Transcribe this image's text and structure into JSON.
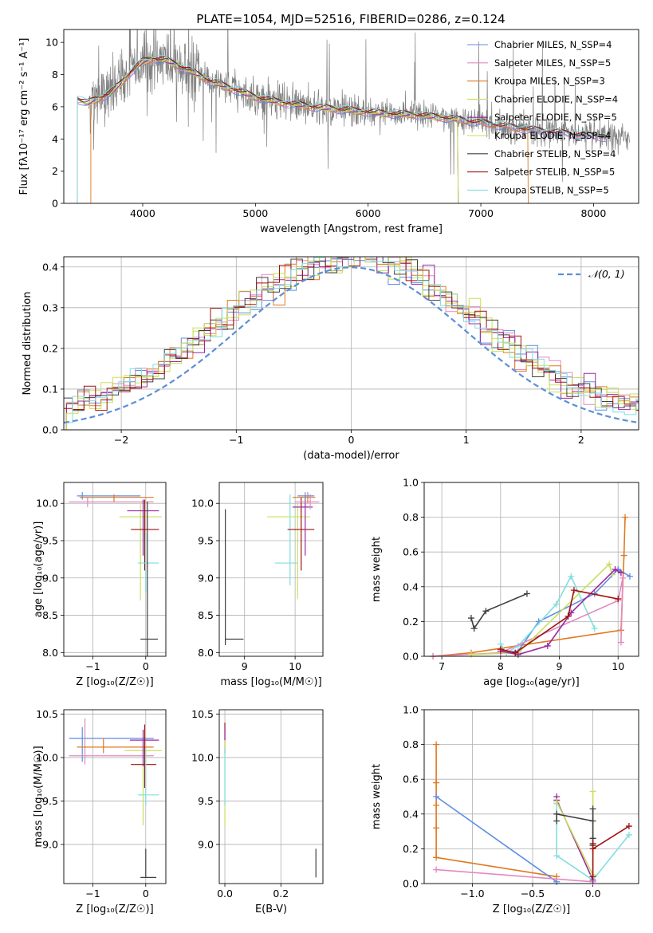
{
  "figure": {
    "title": "PLATE=1054, MJD=52516, FIBERID=0286, z=0.124"
  },
  "series": [
    {
      "key": "ch_miles",
      "label": "Chabrier MILES, N_SSP=4",
      "color": "#5f8ee0"
    },
    {
      "key": "sa_miles",
      "label": "Salpeter MILES, N_SSP=5",
      "color": "#e28ac0"
    },
    {
      "key": "kr_miles",
      "label": "Kroupa MILES, N_SSP=3",
      "color": "#e07820"
    },
    {
      "key": "ch_elodie",
      "label": "Chabrier ELODIE, N_SSP=4",
      "color": "#c8e060"
    },
    {
      "key": "sa_elodie",
      "label": "Salpeter ELODIE, N_SSP=5",
      "color": "#9a2aa0"
    },
    {
      "key": "kr_elodie",
      "label": "Kroupa ELODIE, N_SSP=4",
      "color": "#c8e050"
    },
    {
      "key": "ch_stelib",
      "label": "Chabrier STELIB, N_SSP=4",
      "color": "#404040"
    },
    {
      "key": "sa_stelib",
      "label": "Salpeter STELIB, N_SSP=5",
      "color": "#a01010"
    },
    {
      "key": "kr_stelib",
      "label": "Kroupa STELIB, N_SSP=5",
      "color": "#80dde0"
    }
  ],
  "chart_data": [
    {
      "id": "spectrum",
      "type": "line",
      "xlabel": "wavelength [Angstrom, rest frame]",
      "ylabel": "Flux [fλ10⁻¹⁷ erg cm⁻² s⁻¹ A⁻¹]",
      "xlim": [
        3300,
        8400
      ],
      "ylim": [
        0,
        10.8
      ],
      "xticks": [
        4000,
        5000,
        6000,
        7000,
        8000
      ],
      "yticks": [
        0,
        2,
        4,
        6,
        8,
        10
      ],
      "data_color": "#808080",
      "data_range": [
        3520,
        8320
      ],
      "continuum": {
        "x": [
          3420,
          3500,
          3600,
          3700,
          3800,
          3900,
          4000,
          4100,
          4200,
          4400,
          4600,
          4800,
          5000,
          5200,
          5500,
          5800,
          6100,
          6400,
          6700,
          7000,
          7400,
          7800,
          8100
        ],
        "y": [
          6.5,
          6.2,
          6.5,
          6.8,
          7.4,
          8.2,
          8.8,
          9.0,
          8.9,
          8.3,
          7.6,
          7.1,
          6.6,
          6.3,
          6.0,
          5.8,
          5.6,
          5.5,
          5.3,
          5.0,
          4.6,
          4.3,
          4.1
        ]
      },
      "model_starts": {
        "kr_miles": 3540,
        "sa_miles": 3420,
        "ch_miles": 3420
      },
      "model_ends": {
        "kr_miles": 7420,
        "ch_elodie": 6800,
        "kr_elodie": 6800,
        "sa_elodie": 6800
      }
    },
    {
      "id": "residuals",
      "type": "line",
      "xlabel": "(data-model)/error",
      "ylabel": "Normed distribution",
      "xlim": [
        -2.5,
        2.5
      ],
      "ylim": [
        0,
        0.425
      ],
      "xticks": [
        -2,
        -1,
        0,
        1,
        2
      ],
      "yticks": [
        0.0,
        0.1,
        0.2,
        0.3,
        0.4
      ],
      "gaussian_label": "𝒩(0, 1)",
      "gaussian_color": "#5b8fd6"
    },
    {
      "id": "age_vs_Z",
      "type": "scatter",
      "xlabel": "Z [log₁₀(Z/Z☉)]",
      "ylabel": "age  [log₁₀(age/yr)]",
      "xlim": [
        -1.55,
        0.38
      ],
      "ylim": [
        7.95,
        10.28
      ],
      "xticks": [
        -1,
        0
      ],
      "yticks": [
        8.0,
        8.5,
        9.0,
        9.5,
        10.0
      ],
      "points": [
        {
          "s": "ch_miles",
          "x": -1.2,
          "y": 10.1,
          "xe": [
            -1.3,
            -0.1
          ],
          "ye": [
            10.05,
            10.15
          ]
        },
        {
          "s": "sa_miles",
          "x": -1.1,
          "y": 10.02,
          "xe": [
            -1.45,
            0.15
          ],
          "ye": [
            9.95,
            10.08
          ]
        },
        {
          "s": "kr_miles",
          "x": -0.6,
          "y": 10.08,
          "xe": [
            -1.25,
            0.15
          ],
          "ye": [
            10.02,
            10.12
          ]
        },
        {
          "s": "ch_elodie",
          "x": -0.1,
          "y": 9.82,
          "xe": [
            -0.5,
            0.3
          ],
          "ye": [
            8.7,
            10.0
          ]
        },
        {
          "s": "sa_elodie",
          "x": -0.05,
          "y": 9.9,
          "xe": [
            -0.35,
            0.25
          ],
          "ye": [
            9.3,
            10.05
          ]
        },
        {
          "s": "sa_stelib",
          "x": -0.02,
          "y": 9.65,
          "xe": [
            -0.28,
            0.25
          ],
          "ye": [
            9.1,
            10.05
          ]
        },
        {
          "s": "kr_stelib",
          "x": 0.0,
          "y": 9.2,
          "xe": [
            -0.15,
            0.25
          ],
          "ye": [
            8.8,
            9.6
          ]
        },
        {
          "s": "ch_stelib",
          "x": 0.03,
          "y": 8.18,
          "xe": [
            -0.1,
            0.23
          ],
          "ye": [
            7.95,
            10.02
          ]
        }
      ]
    },
    {
      "id": "age_vs_mass",
      "type": "scatter",
      "xlabel": "mass [log₁₀(M/M☉)]",
      "ylabel": "",
      "xlim": [
        8.5,
        10.55
      ],
      "ylim": [
        7.95,
        10.28
      ],
      "xticks": [
        9,
        10
      ],
      "yticks": [
        8.0,
        8.5,
        9.0,
        9.5,
        10.0
      ],
      "points": [
        {
          "s": "ch_stelib",
          "x": 8.62,
          "y": 8.18,
          "xe": [
            8.62,
            8.98
          ],
          "ye": [
            8.1,
            9.92
          ]
        },
        {
          "s": "kr_stelib",
          "x": 9.9,
          "y": 9.2,
          "xe": [
            9.6,
            10.05
          ],
          "ye": [
            8.9,
            10.12
          ]
        },
        {
          "s": "ch_elodie",
          "x": 10.05,
          "y": 9.82,
          "xe": [
            9.45,
            10.3
          ],
          "ye": [
            8.72,
            10.0
          ]
        },
        {
          "s": "sa_stelib",
          "x": 10.12,
          "y": 9.65,
          "xe": [
            9.85,
            10.38
          ],
          "ye": [
            9.1,
            10.08
          ]
        },
        {
          "s": "sa_elodie",
          "x": 10.2,
          "y": 9.95,
          "xe": [
            9.95,
            10.35
          ],
          "ye": [
            9.3,
            10.1
          ]
        },
        {
          "s": "kr_miles",
          "x": 10.25,
          "y": 10.08,
          "xe": [
            9.95,
            10.4
          ],
          "ye": [
            10.0,
            10.15
          ]
        },
        {
          "s": "sa_miles",
          "x": 10.3,
          "y": 10.02,
          "xe": [
            10.0,
            10.48
          ],
          "ye": [
            9.92,
            10.12
          ]
        },
        {
          "s": "ch_miles",
          "x": 10.2,
          "y": 10.1,
          "xe": [
            10.05,
            10.38
          ],
          "ye": [
            10.05,
            10.15
          ]
        }
      ]
    },
    {
      "id": "weight_vs_age",
      "type": "line",
      "xlabel": "age  [log₁₀(age/yr)]",
      "ylabel": "mass weight",
      "xlim": [
        6.7,
        10.35
      ],
      "ylim": [
        0,
        1.0
      ],
      "xticks": [
        7,
        8,
        9,
        10
      ],
      "yticks": [
        0.0,
        0.2,
        0.4,
        0.6,
        0.8,
        1.0
      ],
      "lines": [
        {
          "s": "ch_stelib",
          "x": [
            7.5,
            7.55,
            7.75,
            8.45
          ],
          "y": [
            0.22,
            0.16,
            0.26,
            0.36
          ]
        },
        {
          "s": "kr_miles",
          "x": 6.85,
          "xs": [
            6.85,
            7.5,
            10.05,
            10.1,
            10.12
          ],
          "ys": [
            0.0,
            0.02,
            0.15,
            0.58,
            0.8
          ]
        },
        {
          "s": "ch_miles",
          "x": [
            8.0,
            8.3,
            8.65,
            9.6,
            10.0,
            10.2
          ],
          "y": [
            0.02,
            0.03,
            0.2,
            0.36,
            0.5,
            0.46
          ]
        },
        {
          "s": "kr_stelib",
          "x": [
            8.0,
            8.1,
            8.3,
            8.95,
            9.2,
            9.6
          ],
          "y": [
            0.07,
            0.02,
            0.06,
            0.3,
            0.46,
            0.16
          ]
        },
        {
          "s": "sa_miles",
          "x": [
            6.85,
            8.0,
            10.0,
            10.08,
            10.05
          ],
          "y": [
            0.0,
            0.02,
            0.32,
            0.45,
            0.08
          ]
        },
        {
          "s": "ch_elodie",
          "x": [
            7.5,
            8.3,
            9.85,
            9.9
          ],
          "y": [
            0.01,
            0.02,
            0.53,
            0.47
          ]
        },
        {
          "s": "sa_elodie",
          "x": [
            8.0,
            8.3,
            8.8,
            9.2,
            9.95,
            10.05
          ],
          "y": [
            0.03,
            0.01,
            0.06,
            0.25,
            0.5,
            0.48
          ]
        },
        {
          "s": "sa_stelib",
          "x": [
            8.0,
            8.25,
            9.15,
            9.25,
            10.0
          ],
          "y": [
            0.04,
            0.02,
            0.23,
            0.38,
            0.33
          ]
        }
      ]
    },
    {
      "id": "mass_vs_Z",
      "type": "scatter",
      "xlabel": "Z [log₁₀(Z/Z☉)]",
      "ylabel": "mass [log₁₀(M/M☉)]",
      "xlim": [
        -1.55,
        0.38
      ],
      "ylim": [
        8.55,
        10.55
      ],
      "xticks": [
        -1,
        0
      ],
      "yticks": [
        9.0,
        9.5,
        10.0,
        10.5
      ],
      "points": [
        {
          "s": "ch_miles",
          "x": -1.2,
          "y": 10.22,
          "xe": [
            -1.45,
            0.15
          ],
          "ye": [
            9.95,
            10.35
          ]
        },
        {
          "s": "sa_miles",
          "x": -1.15,
          "y": 10.02,
          "xe": [
            -1.45,
            0.15
          ],
          "ye": [
            9.92,
            10.45
          ]
        },
        {
          "s": "kr_miles",
          "x": -0.8,
          "y": 10.12,
          "xe": [
            -1.3,
            0.15
          ],
          "ye": [
            10.05,
            10.22
          ]
        },
        {
          "s": "ch_elodie",
          "x": -0.05,
          "y": 10.08,
          "xe": [
            -0.4,
            0.3
          ],
          "ye": [
            9.22,
            10.2
          ]
        },
        {
          "s": "sa_elodie",
          "x": -0.05,
          "y": 10.2,
          "xe": [
            -0.3,
            0.25
          ],
          "ye": [
            9.9,
            10.32
          ]
        },
        {
          "s": "sa_stelib",
          "x": -0.02,
          "y": 9.92,
          "xe": [
            -0.28,
            0.2
          ],
          "ye": [
            9.65,
            10.38
          ]
        },
        {
          "s": "kr_stelib",
          "x": 0.0,
          "y": 9.57,
          "xe": [
            -0.15,
            0.25
          ],
          "ye": [
            9.45,
            10.1
          ]
        },
        {
          "s": "ch_stelib",
          "x": 0.0,
          "y": 8.62,
          "xe": [
            -0.1,
            0.2
          ],
          "ye": [
            8.62,
            8.95
          ]
        }
      ]
    },
    {
      "id": "mass_vs_EBV",
      "type": "scatter",
      "xlabel": "E(B-V)",
      "ylabel": "",
      "xlim": [
        -0.02,
        0.35
      ],
      "ylim": [
        8.55,
        10.55
      ],
      "xticks": [
        0.0,
        0.2
      ],
      "yticks": [
        9.0,
        9.5,
        10.0,
        10.5
      ],
      "points": [
        {
          "s": "sa_stelib",
          "x": 0.0,
          "y": 10.3,
          "ye": [
            10.2,
            10.4
          ]
        },
        {
          "s": "sa_elodie",
          "x": 0.0,
          "y": 10.22,
          "ye": [
            10.05,
            10.35
          ]
        },
        {
          "s": "ch_elodie",
          "x": 0.0,
          "y": 10.05,
          "ye": [
            9.2,
            10.2
          ]
        },
        {
          "s": "kr_stelib",
          "x": 0.0,
          "y": 9.57,
          "ye": [
            9.45,
            10.1
          ]
        },
        {
          "s": "ch_stelib",
          "x": 0.325,
          "y": 8.62,
          "ye": [
            8.62,
            8.95
          ]
        }
      ]
    },
    {
      "id": "weight_vs_Z",
      "type": "line",
      "xlabel": "Z [log₁₀(Z/Z☉)]",
      "ylabel": "mass weight",
      "xlim": [
        -1.4,
        0.38
      ],
      "ylim": [
        0,
        1.0
      ],
      "xticks": [
        -1.0,
        -0.5,
        0.0
      ],
      "yticks": [
        0.0,
        0.2,
        0.4,
        0.6,
        0.8,
        1.0
      ],
      "lines": [
        {
          "s": "kr_miles",
          "x": [
            -1.3,
            -1.3,
            -1.3,
            -1.3,
            -1.3,
            -0.3
          ],
          "y": [
            0.8,
            0.58,
            0.45,
            0.32,
            0.15,
            0.04
          ]
        },
        {
          "s": "ch_miles",
          "x": [
            -1.3,
            -0.3
          ],
          "y": [
            0.5,
            0.01
          ]
        },
        {
          "s": "sa_miles",
          "x": [
            -1.3,
            0.0
          ],
          "y": [
            0.08,
            0.01
          ]
        },
        {
          "s": "kr_stelib",
          "x": [
            -0.3,
            -0.3,
            0.0,
            0.3
          ],
          "y": [
            0.46,
            0.16,
            0.02,
            0.28
          ]
        },
        {
          "s": "sa_elodie",
          "x": [
            -0.3,
            -0.3,
            0.0
          ],
          "y": [
            0.5,
            0.48,
            0.02
          ]
        },
        {
          "s": "ch_elodie",
          "x": [
            -0.3,
            0.0,
            0.0
          ],
          "y": [
            0.47,
            0.05,
            0.53
          ]
        },
        {
          "s": "ch_stelib",
          "x": [
            -0.3,
            -0.3,
            0.0,
            0.0,
            0.0,
            0.0
          ],
          "y": [
            0.36,
            0.4,
            0.36,
            0.26,
            0.22,
            0.43
          ]
        },
        {
          "s": "sa_stelib",
          "x": [
            0.0,
            0.0,
            0.0,
            0.3
          ],
          "y": [
            0.23,
            0.04,
            0.2,
            0.33
          ]
        }
      ]
    }
  ]
}
